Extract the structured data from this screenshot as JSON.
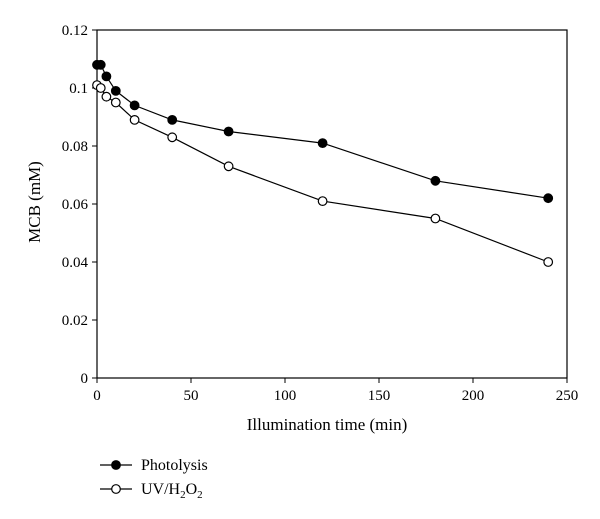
{
  "chart_data": {
    "type": "line",
    "xlabel": "Illumination time (min)",
    "ylabel": "MCB (mM)",
    "xlim": [
      0,
      250
    ],
    "ylim": [
      0,
      0.12
    ],
    "x_ticks": [
      "0",
      "50",
      "100",
      "150",
      "200",
      "250"
    ],
    "y_ticks": [
      "0",
      "0.02",
      "0.04",
      "0.06",
      "0.08",
      "0.1",
      "0.12"
    ],
    "grid": false,
    "legend_position": "bottom-left",
    "series": [
      {
        "name": "Photolysis",
        "marker": "filled-circle",
        "x": [
          0,
          2,
          5,
          10,
          20,
          40,
          70,
          120,
          180,
          240
        ],
        "y": [
          0.108,
          0.108,
          0.104,
          0.099,
          0.094,
          0.089,
          0.085,
          0.081,
          0.068,
          0.062
        ]
      },
      {
        "name": "UV/H2O2",
        "marker": "open-circle",
        "x": [
          0,
          2,
          5,
          10,
          20,
          40,
          70,
          120,
          180,
          240
        ],
        "y": [
          0.101,
          0.1,
          0.097,
          0.095,
          0.089,
          0.083,
          0.073,
          0.061,
          0.055,
          0.04
        ]
      }
    ]
  }
}
